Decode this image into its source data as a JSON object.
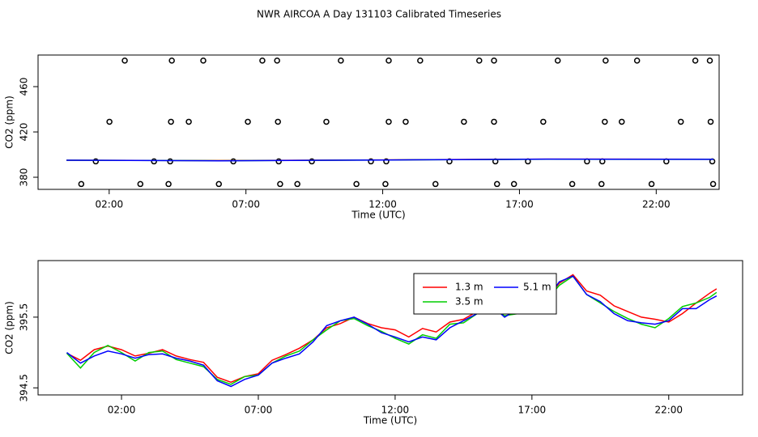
{
  "title": "NWR AIRCOA A  Day 131103  Calibrated Timeseries",
  "chart_data": [
    {
      "type": "scatter",
      "x_label": "Time (UTC)",
      "y_label": "CO2 (ppm)",
      "xlim": [
        -0.6,
        24.3
      ],
      "ylim": [
        369.3,
        487.9
      ],
      "xticks": [
        {
          "value": 2,
          "label": "02:00"
        },
        {
          "value": 7,
          "label": "07:00"
        },
        {
          "value": 12,
          "label": "12:00"
        },
        {
          "value": 17,
          "label": "17:00"
        },
        {
          "value": 22,
          "label": "22:00"
        }
      ],
      "yticks": [
        380,
        420,
        460
      ],
      "series": [
        {
          "style": "points",
          "color": "#000000",
          "x": [
            2.57,
            4.29,
            5.44,
            7.6,
            8.14,
            10.47,
            12.22,
            13.37,
            15.53,
            16.07,
            18.4,
            20.15,
            21.3,
            23.43,
            23.96,
            2.01,
            4.26,
            4.91,
            7.07,
            8.17,
            9.94,
            12.22,
            12.84,
            14.97,
            16.07,
            17.87,
            20.12,
            20.74,
            22.9,
            23.99,
            1.51,
            3.64,
            4.23,
            6.54,
            8.2,
            9.41,
            11.57,
            12.13,
            14.44,
            16.12,
            17.31,
            19.47,
            20.03,
            22.37,
            24.05,
            0.98,
            3.14,
            4.17,
            6.01,
            8.25,
            8.88,
            11.04,
            12.1,
            13.93,
            16.18,
            16.8,
            18.93,
            20.0,
            21.83,
            24.08
          ],
          "values": [
            483,
            483,
            483,
            483,
            483,
            483,
            483,
            483,
            483,
            483,
            483,
            483,
            483,
            483,
            483,
            429,
            429,
            429,
            429,
            429,
            429,
            429,
            429,
            429,
            429,
            429,
            429,
            429,
            429,
            429,
            394,
            394,
            394,
            394,
            394,
            394,
            394,
            394,
            394,
            394,
            394,
            394,
            394,
            394,
            394,
            374,
            374,
            374,
            374,
            374,
            374,
            374,
            374,
            374,
            374,
            374,
            374,
            374,
            374,
            374
          ]
        },
        {
          "style": "line",
          "color": "#ff0000",
          "x": [
            0.44,
            6,
            12,
            18,
            24.1
          ],
          "values": [
            395.0,
            394.7,
            395.3,
            396.0,
            395.9
          ]
        },
        {
          "style": "line",
          "color": "#00cd00",
          "x": [
            0.44,
            6,
            12,
            18,
            24.1
          ],
          "values": [
            395.0,
            394.6,
            395.2,
            395.9,
            395.8
          ]
        },
        {
          "style": "line",
          "color": "#0000ff",
          "x": [
            0.44,
            6,
            12,
            18,
            24.1
          ],
          "values": [
            395.0,
            394.5,
            395.2,
            396.0,
            395.8
          ]
        }
      ]
    },
    {
      "type": "line",
      "x_label": "Time (UTC)",
      "y_label": "CO2 (ppm)",
      "legend": "top-right",
      "xlim": [
        -1.05,
        24.7
      ],
      "ylim": [
        394.4,
        396.3
      ],
      "xticks": [
        {
          "value": 2,
          "label": "02:00"
        },
        {
          "value": 7,
          "label": "07:00"
        },
        {
          "value": 12,
          "label": "12:00"
        },
        {
          "value": 17,
          "label": "17:00"
        },
        {
          "value": 22,
          "label": "22:00"
        }
      ],
      "yticks": [
        394.5,
        395.5
      ],
      "x": [
        0,
        0.5,
        1,
        1.5,
        2,
        2.5,
        3,
        3.5,
        4,
        4.5,
        5,
        5.5,
        6,
        6.5,
        7,
        7.5,
        8,
        8.5,
        9,
        9.5,
        10,
        10.5,
        11,
        11.5,
        12,
        12.5,
        13,
        13.5,
        14,
        14.5,
        15,
        15.5,
        16,
        16.5,
        17,
        17.5,
        18,
        18.5,
        19,
        19.5,
        20,
        20.5,
        21,
        21.5,
        22,
        22.5,
        23,
        23.5,
        23.75
      ],
      "series": [
        {
          "name": "1.3 m",
          "color": "#ff0000",
          "values": [
            394.99,
            394.89,
            395.04,
            395.09,
            395.04,
            394.95,
            394.99,
            395.04,
            394.95,
            394.9,
            394.86,
            394.65,
            394.58,
            394.66,
            394.7,
            394.89,
            394.97,
            395.06,
            395.18,
            395.35,
            395.41,
            395.5,
            395.41,
            395.35,
            395.32,
            395.22,
            395.34,
            395.29,
            395.43,
            395.47,
            395.58,
            395.66,
            395.61,
            395.64,
            395.7,
            395.75,
            395.98,
            396.1,
            395.87,
            395.81,
            395.66,
            395.58,
            395.5,
            395.47,
            395.43,
            395.55,
            395.7,
            395.84,
            395.9
          ]
        },
        {
          "name": "3.5 m",
          "color": "#00cd00",
          "values": [
            394.99,
            394.78,
            395.0,
            395.1,
            395.0,
            394.88,
            395.0,
            395.02,
            394.9,
            394.85,
            394.8,
            394.62,
            394.55,
            394.66,
            394.68,
            394.85,
            394.95,
            395.02,
            395.18,
            395.32,
            395.45,
            395.48,
            395.38,
            395.3,
            395.2,
            395.12,
            395.25,
            395.2,
            395.4,
            395.42,
            395.55,
            395.62,
            395.52,
            395.55,
            395.6,
            395.72,
            395.95,
            396.08,
            395.82,
            395.7,
            395.58,
            395.48,
            395.4,
            395.35,
            395.48,
            395.65,
            395.7,
            395.78,
            395.85
          ]
        },
        {
          "name": "5.1 m",
          "color": "#0000ff",
          "values": [
            395.0,
            394.85,
            394.95,
            395.02,
            394.98,
            394.92,
            394.97,
            394.98,
            394.92,
            394.88,
            394.82,
            394.6,
            394.52,
            394.62,
            394.68,
            394.85,
            394.92,
            394.98,
            395.15,
            395.38,
            395.45,
            395.5,
            395.4,
            395.28,
            395.22,
            395.15,
            395.22,
            395.18,
            395.35,
            395.45,
            395.55,
            395.68,
            395.5,
            395.62,
            395.65,
            395.72,
            396.0,
            396.08,
            395.82,
            395.72,
            395.55,
            395.45,
            395.42,
            395.4,
            395.45,
            395.62,
            395.62,
            395.75,
            395.8
          ]
        }
      ]
    }
  ]
}
